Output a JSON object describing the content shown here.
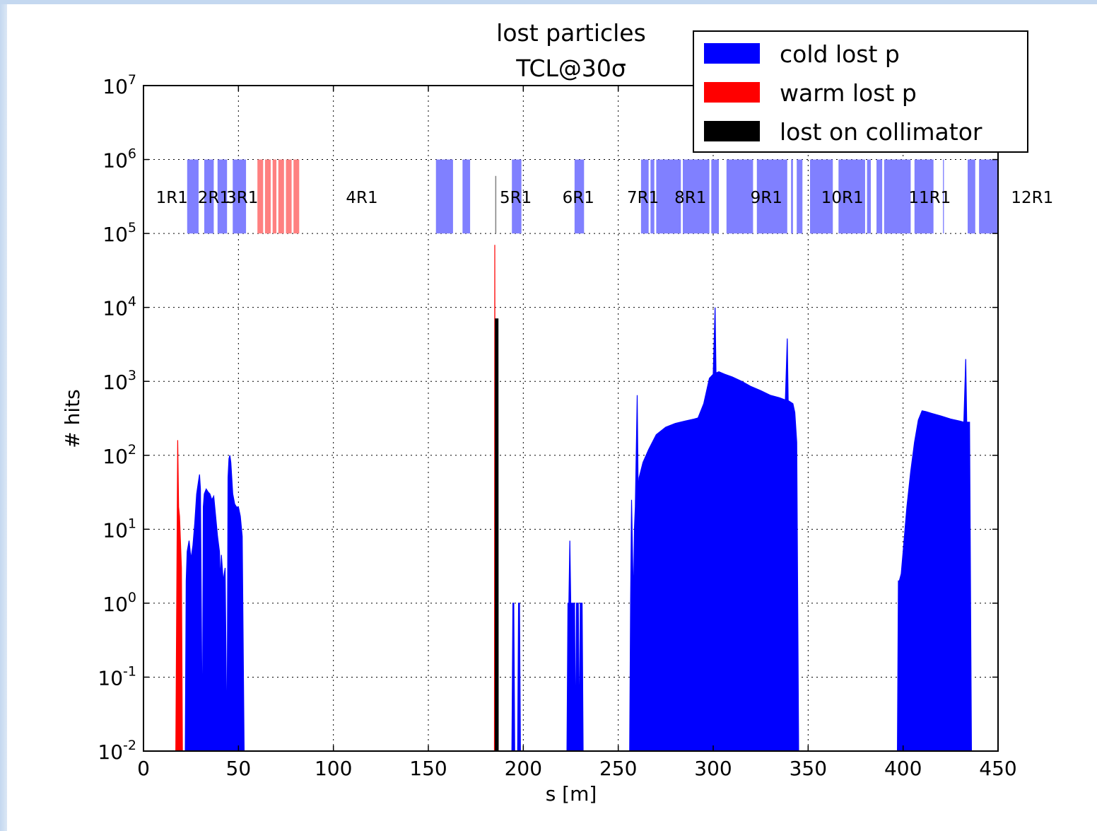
{
  "chart_data": {
    "type": "bar",
    "title": "lost particles",
    "subtitle": "TCL@30σ",
    "xlabel": "s [m]",
    "ylabel": "# hits",
    "xlim": [
      0,
      450
    ],
    "ylim_exponents": [
      -2,
      7
    ],
    "yscale": "log",
    "grid": true,
    "x_ticks": [
      "0",
      "50",
      "100",
      "150",
      "200",
      "250",
      "300",
      "350",
      "400",
      "450"
    ],
    "y_ticks": [
      {
        "base": "10",
        "exp": "-2"
      },
      {
        "base": "10",
        "exp": "-1"
      },
      {
        "base": "10",
        "exp": "0"
      },
      {
        "base": "10",
        "exp": "1"
      },
      {
        "base": "10",
        "exp": "2"
      },
      {
        "base": "10",
        "exp": "3"
      },
      {
        "base": "10",
        "exp": "4"
      },
      {
        "base": "10",
        "exp": "5"
      },
      {
        "base": "10",
        "exp": "6"
      },
      {
        "base": "10",
        "exp": "7"
      }
    ],
    "legend_position": "top-right",
    "legend": [
      {
        "label": "cold lost p",
        "color": "#0000ff"
      },
      {
        "label": "warm lost p",
        "color": "#ff0000"
      },
      {
        "label": "lost on collimator",
        "color": "#000000"
      }
    ],
    "section_labels": [
      {
        "label": "1R1",
        "s": 15
      },
      {
        "label": "2R1",
        "s": 37
      },
      {
        "label": "3R1",
        "s": 52
      },
      {
        "label": "4R1",
        "s": 115
      },
      {
        "label": "5R1",
        "s": 196
      },
      {
        "label": "6R1",
        "s": 229
      },
      {
        "label": "7R1",
        "s": 263
      },
      {
        "label": "8R1",
        "s": 288
      },
      {
        "label": "9R1",
        "s": 328
      },
      {
        "label": "10R1",
        "s": 368
      },
      {
        "label": "11R1",
        "s": 414
      },
      {
        "label": "12R1",
        "s": 468
      }
    ],
    "elements_cold": [
      [
        23,
        29
      ],
      [
        32,
        37
      ],
      [
        39,
        44
      ],
      [
        47,
        54
      ],
      [
        154,
        163
      ],
      [
        168,
        172
      ],
      [
        194,
        199
      ],
      [
        227,
        232
      ],
      [
        262,
        266
      ],
      [
        267,
        269
      ],
      [
        270,
        283
      ],
      [
        284,
        298
      ],
      [
        299,
        303
      ],
      [
        307,
        321
      ],
      [
        323,
        339
      ],
      [
        341,
        342
      ],
      [
        344,
        347
      ],
      [
        351,
        363
      ],
      [
        366,
        380
      ],
      [
        381,
        383
      ],
      [
        386,
        389
      ],
      [
        390,
        404
      ],
      [
        406,
        416
      ],
      [
        421,
        421.5
      ],
      [
        434,
        438
      ],
      [
        440,
        450
      ]
    ],
    "elements_warm": [
      [
        60,
        63
      ],
      [
        64,
        67
      ],
      [
        68,
        70
      ],
      [
        71,
        74
      ],
      [
        75,
        78
      ],
      [
        79,
        82
      ]
    ],
    "elements_collimator": [
      [
        185.5,
        185.9
      ]
    ],
    "elements_y_range": [
      100000,
      1000000
    ],
    "cold_profile": [
      [
        22,
        0.01
      ],
      [
        22.5,
        2
      ],
      [
        23,
        5
      ],
      [
        24,
        7
      ],
      [
        25,
        4
      ],
      [
        26,
        6
      ],
      [
        27,
        12
      ],
      [
        28,
        30
      ],
      [
        29,
        45
      ],
      [
        29.5,
        55
      ],
      [
        30,
        35
      ],
      [
        31,
        0.01
      ],
      [
        31.5,
        20
      ],
      [
        32,
        30
      ],
      [
        33,
        35
      ],
      [
        34,
        32
      ],
      [
        35,
        30
      ],
      [
        36,
        25
      ],
      [
        37,
        28
      ],
      [
        38,
        15
      ],
      [
        39,
        8
      ],
      [
        40,
        5
      ],
      [
        40.5,
        2
      ],
      [
        41,
        4.5
      ],
      [
        42,
        2
      ],
      [
        43,
        3
      ],
      [
        44,
        0.01
      ],
      [
        44.5,
        50
      ],
      [
        45,
        90
      ],
      [
        45.5,
        100
      ],
      [
        46,
        80
      ],
      [
        47,
        30
      ],
      [
        48,
        22
      ],
      [
        49,
        20
      ],
      [
        50,
        20
      ],
      [
        51,
        15
      ],
      [
        52,
        8
      ],
      [
        53,
        0.01
      ],
      [
        194,
        0.01
      ],
      [
        194.5,
        1
      ],
      [
        195,
        1
      ],
      [
        195.5,
        0.01
      ],
      [
        197,
        0.01
      ],
      [
        197.5,
        1
      ],
      [
        198,
        1
      ],
      [
        198.5,
        0.01
      ],
      [
        223,
        0.01
      ],
      [
        223.5,
        1
      ],
      [
        224,
        1
      ],
      [
        224.5,
        7
      ],
      [
        225,
        1
      ],
      [
        226,
        1
      ],
      [
        227,
        1
      ],
      [
        227.5,
        0.01
      ],
      [
        228,
        1
      ],
      [
        229,
        1
      ],
      [
        229.5,
        0.01
      ],
      [
        230,
        1
      ],
      [
        231,
        1
      ],
      [
        231.5,
        0.01
      ],
      [
        256,
        0.01
      ],
      [
        256.5,
        1
      ],
      [
        257,
        25
      ],
      [
        258,
        1
      ],
      [
        258.5,
        10
      ],
      [
        259,
        20
      ],
      [
        260,
        650
      ],
      [
        260.5,
        30
      ],
      [
        261,
        50
      ],
      [
        263,
        80
      ],
      [
        266,
        120
      ],
      [
        270,
        190
      ],
      [
        275,
        240
      ],
      [
        280,
        270
      ],
      [
        285,
        290
      ],
      [
        290,
        310
      ],
      [
        292,
        320
      ],
      [
        295,
        500
      ],
      [
        298,
        1100
      ],
      [
        300,
        1250
      ],
      [
        301,
        10000
      ],
      [
        301.5,
        1300
      ],
      [
        303,
        1350
      ],
      [
        306,
        1250
      ],
      [
        310,
        1150
      ],
      [
        315,
        1000
      ],
      [
        320,
        850
      ],
      [
        325,
        750
      ],
      [
        330,
        650
      ],
      [
        335,
        600
      ],
      [
        338,
        560
      ],
      [
        339,
        3800
      ],
      [
        339.5,
        550
      ],
      [
        342,
        500
      ],
      [
        343,
        380
      ],
      [
        344,
        150
      ],
      [
        345,
        0.01
      ],
      [
        397,
        0.01
      ],
      [
        397.5,
        2
      ],
      [
        398,
        2
      ],
      [
        399,
        2.5
      ],
      [
        400,
        5
      ],
      [
        402,
        20
      ],
      [
        404,
        60
      ],
      [
        406,
        150
      ],
      [
        408,
        300
      ],
      [
        410,
        400
      ],
      [
        412,
        390
      ],
      [
        415,
        370
      ],
      [
        420,
        340
      ],
      [
        425,
        310
      ],
      [
        430,
        290
      ],
      [
        432,
        280
      ],
      [
        433,
        2000
      ],
      [
        433.5,
        280
      ],
      [
        435,
        280
      ],
      [
        436,
        0.01
      ]
    ],
    "warm_profile": [
      [
        17,
        0.01
      ],
      [
        18,
        160
      ],
      [
        18.5,
        20
      ],
      [
        19,
        15
      ],
      [
        20,
        3
      ],
      [
        20.5,
        0.01
      ],
      [
        184.8,
        0.01
      ],
      [
        185,
        70000
      ],
      [
        185.3,
        0.01
      ]
    ],
    "collimator_profile": [
      [
        185.2,
        0.01
      ],
      [
        185.3,
        7000
      ],
      [
        186.7,
        7000
      ],
      [
        186.8,
        0.01
      ]
    ]
  }
}
